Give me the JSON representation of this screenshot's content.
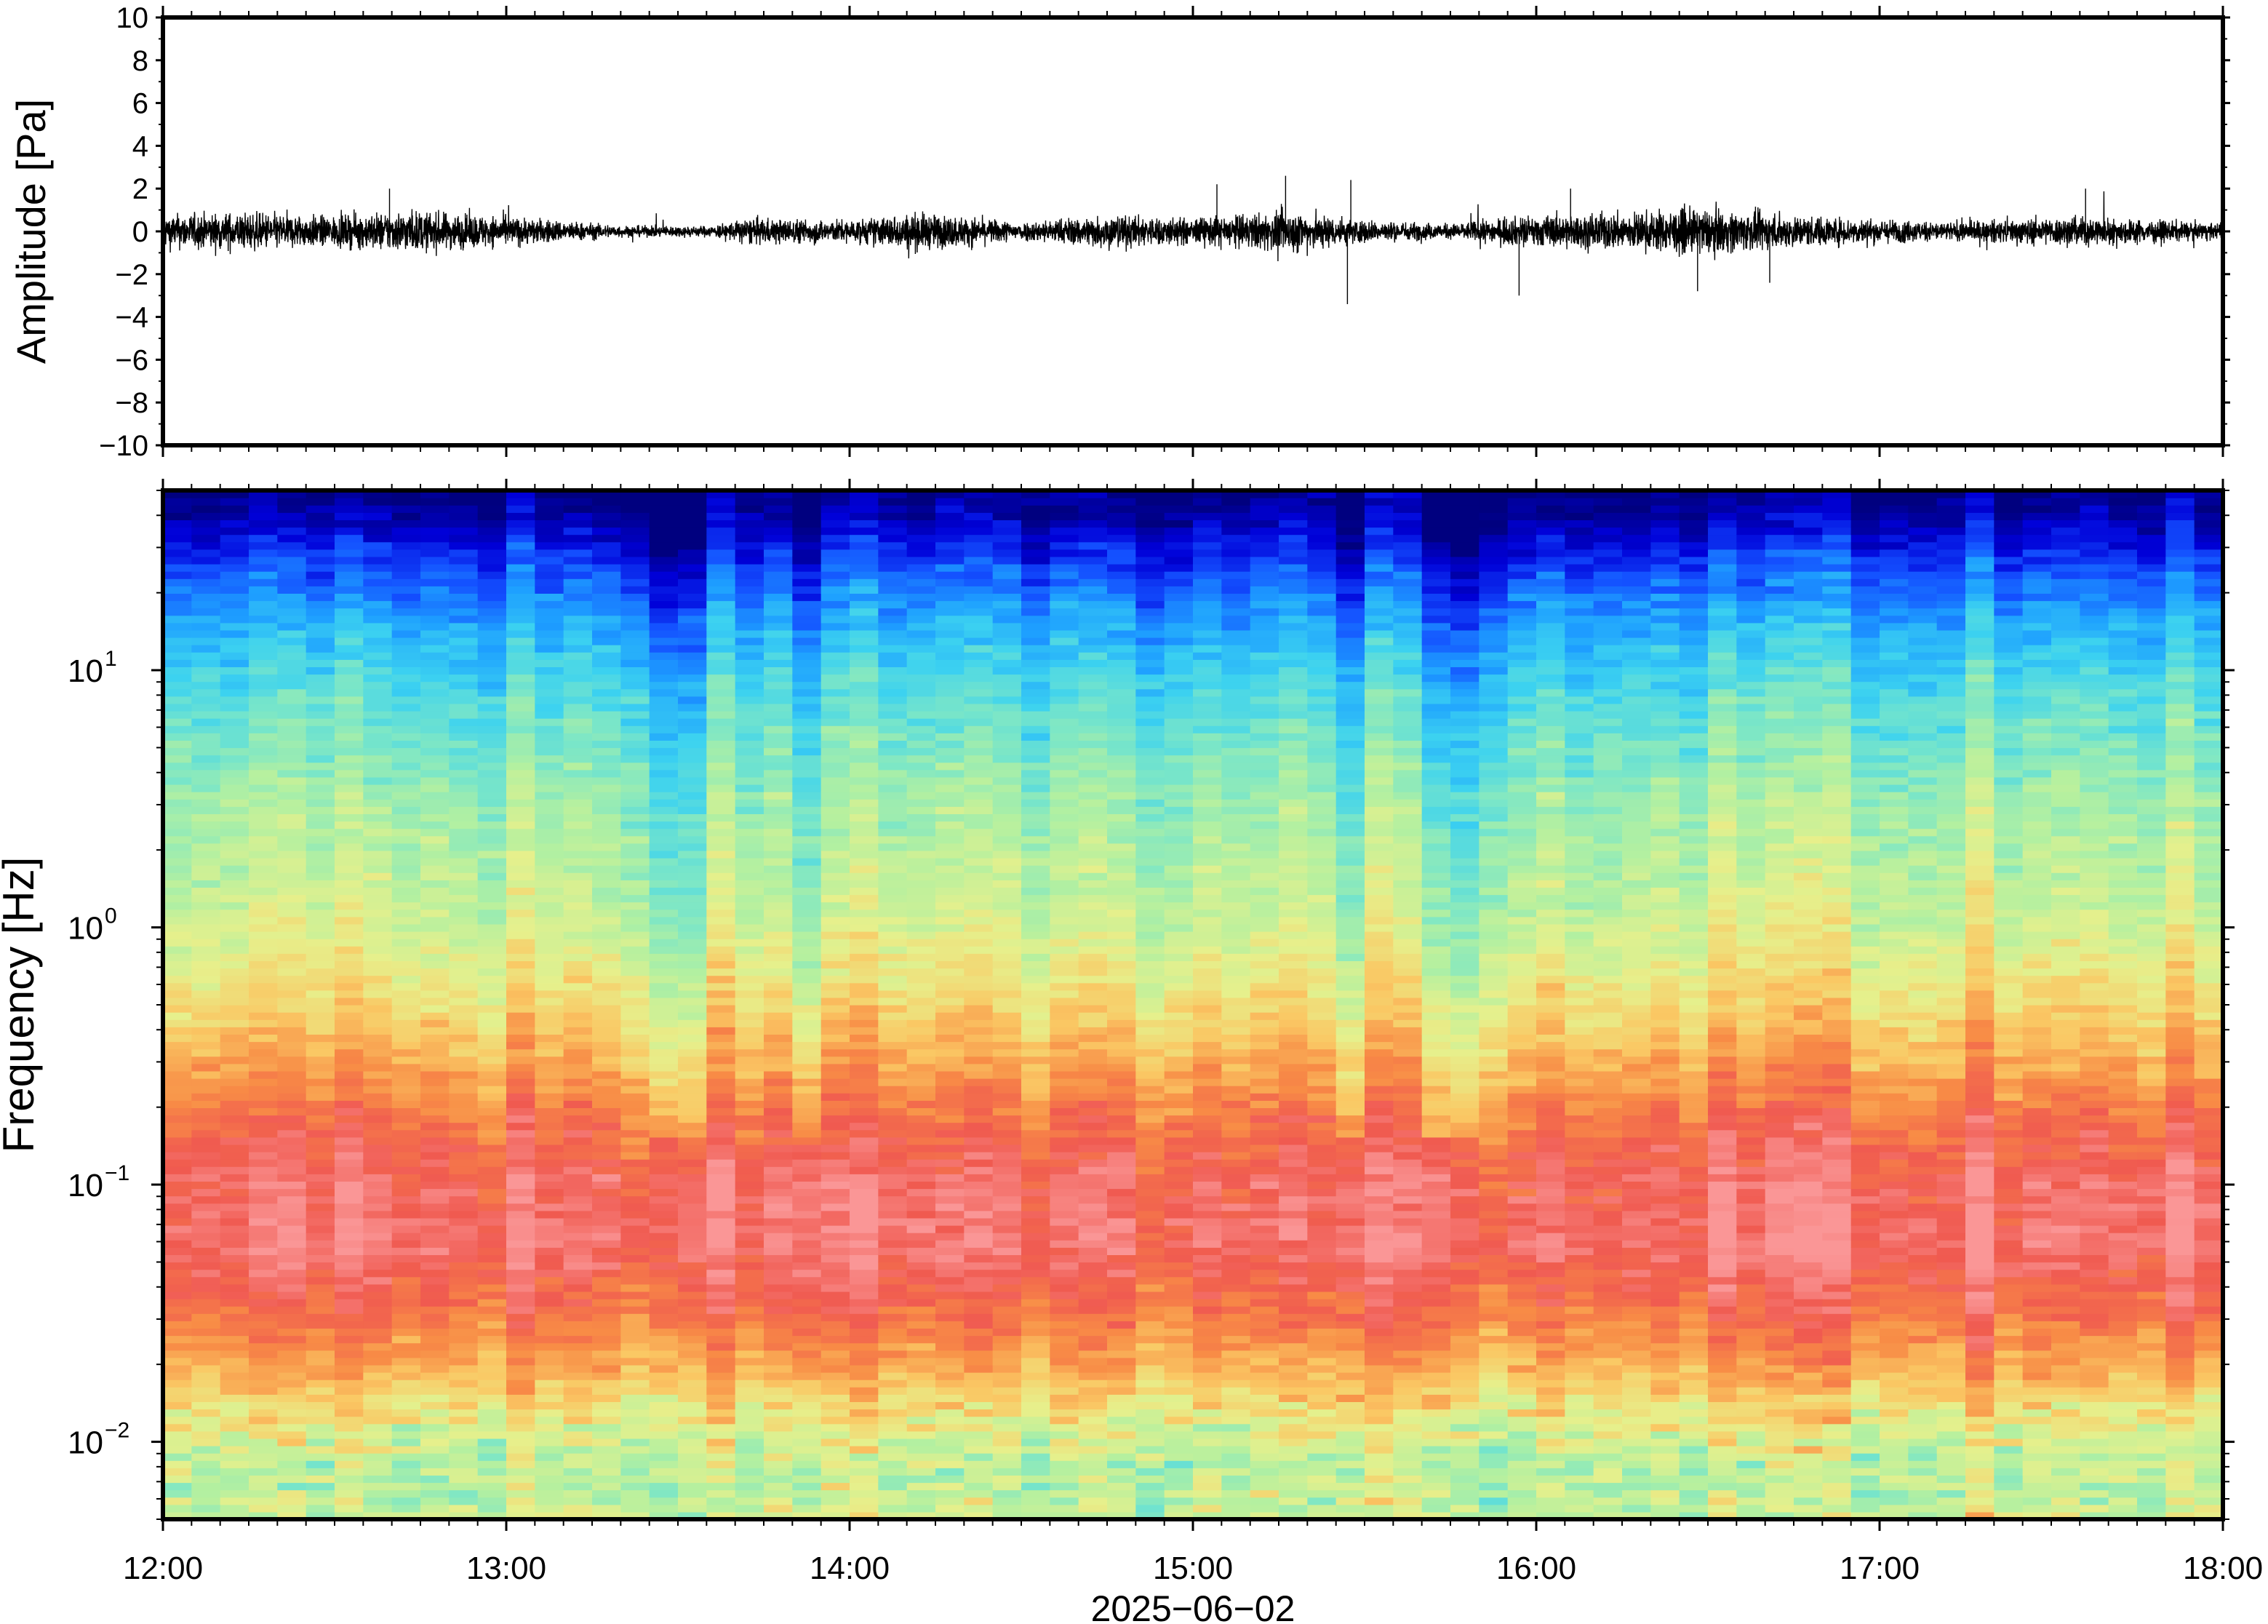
{
  "chart_data": [
    {
      "type": "line",
      "panel": "waveform",
      "ylabel": "Amplitude [Pa]",
      "ylim": [
        -10,
        10
      ],
      "yticks": [
        10,
        8,
        6,
        4,
        2,
        0,
        -2,
        -4,
        -6,
        -8,
        -10
      ],
      "ytick_labels": [
        "10",
        "8",
        "6",
        "4",
        "2",
        "0",
        "−2",
        "−4",
        "−6",
        "−8",
        "−10"
      ],
      "xlim_hours": [
        12,
        18
      ],
      "grid": false,
      "series_color": "#000000",
      "noise_envelope": [
        {
          "t": 12.0,
          "a": 0.9
        },
        {
          "t": 12.25,
          "a": 1.0
        },
        {
          "t": 12.5,
          "a": 0.8
        },
        {
          "t": 12.7,
          "a": 1.1
        },
        {
          "t": 13.0,
          "a": 0.8
        },
        {
          "t": 13.35,
          "a": 0.3
        },
        {
          "t": 13.6,
          "a": 0.3
        },
        {
          "t": 13.7,
          "a": 0.7
        },
        {
          "t": 14.0,
          "a": 0.6
        },
        {
          "t": 14.2,
          "a": 1.0
        },
        {
          "t": 14.5,
          "a": 0.5
        },
        {
          "t": 14.75,
          "a": 0.9
        },
        {
          "t": 15.0,
          "a": 0.7
        },
        {
          "t": 15.3,
          "a": 1.1
        },
        {
          "t": 15.5,
          "a": 0.6
        },
        {
          "t": 15.75,
          "a": 0.4
        },
        {
          "t": 15.95,
          "a": 0.8
        },
        {
          "t": 16.25,
          "a": 1.0
        },
        {
          "t": 16.5,
          "a": 1.2
        },
        {
          "t": 16.8,
          "a": 0.8
        },
        {
          "t": 17.2,
          "a": 0.5
        },
        {
          "t": 17.6,
          "a": 0.8
        },
        {
          "t": 18.0,
          "a": 0.4
        }
      ],
      "notable_peaks": [
        {
          "t": 15.45,
          "a": -3.4
        },
        {
          "t": 15.27,
          "a": 2.6
        },
        {
          "t": 15.46,
          "a": 2.4
        },
        {
          "t": 15.07,
          "a": 2.2
        },
        {
          "t": 15.95,
          "a": -3.0
        },
        {
          "t": 16.47,
          "a": -2.8
        },
        {
          "t": 16.68,
          "a": -2.4
        },
        {
          "t": 12.66,
          "a": 2.0
        },
        {
          "t": 16.1,
          "a": 2.0
        },
        {
          "t": 17.6,
          "a": 2.0
        }
      ]
    },
    {
      "type": "heatmap",
      "panel": "spectrogram",
      "ylabel": "Frequency [Hz]",
      "yscale": "log",
      "ylim": [
        0.005,
        50
      ],
      "yticks": [
        0.01,
        0.1,
        1,
        10
      ],
      "ytick_labels": [
        {
          "base": "10",
          "exp": "−2"
        },
        {
          "base": "10",
          "exp": "−1"
        },
        {
          "base": "10",
          "exp": "0"
        },
        {
          "base": "10",
          "exp": "1"
        }
      ],
      "xlabel": "2025−06−02",
      "xticks_hours": [
        12,
        13,
        14,
        15,
        16,
        17,
        18
      ],
      "xtick_labels": [
        "12:00",
        "13:00",
        "14:00",
        "15:00",
        "16:00",
        "17:00",
        "18:00"
      ],
      "colormap": [
        "#00007f",
        "#0000d8",
        "#1450ff",
        "#1ea0ff",
        "#3cd2f0",
        "#7ae6c8",
        "#b4f0a0",
        "#e6f08c",
        "#fac864",
        "#f88c46",
        "#f05a50",
        "#fa9696"
      ],
      "spectral_profile": [
        {
          "f": 0.005,
          "level": 6.5
        },
        {
          "f": 0.008,
          "level": 6.2
        },
        {
          "f": 0.012,
          "level": 7.2
        },
        {
          "f": 0.02,
          "level": 8.6
        },
        {
          "f": 0.035,
          "level": 9.8
        },
        {
          "f": 0.06,
          "level": 10.6
        },
        {
          "f": 0.1,
          "level": 10.4
        },
        {
          "f": 0.18,
          "level": 9.6
        },
        {
          "f": 0.3,
          "level": 8.6
        },
        {
          "f": 0.6,
          "level": 7.4
        },
        {
          "f": 1.0,
          "level": 6.7
        },
        {
          "f": 3.0,
          "level": 5.8
        },
        {
          "f": 8.0,
          "level": 4.6
        },
        {
          "f": 15.0,
          "level": 3.4
        },
        {
          "f": 25.0,
          "level": 2.0
        },
        {
          "f": 40.0,
          "level": 0.6
        },
        {
          "f": 50.0,
          "level": 0.2
        }
      ],
      "quiet_periods_hours": [
        [
          13.38,
          13.62
        ],
        [
          13.85,
          13.95
        ],
        [
          15.42,
          15.5
        ],
        [
          15.68,
          15.82
        ]
      ]
    }
  ]
}
